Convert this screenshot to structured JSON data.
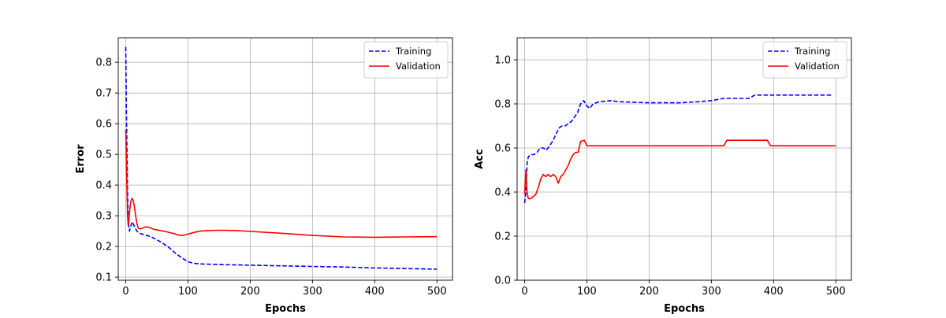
{
  "chart_data": [
    {
      "type": "line",
      "xlabel": "Epochs",
      "ylabel": "Error",
      "xlim": [
        -12,
        525
      ],
      "ylim": [
        0.09,
        0.88
      ],
      "xticks": [
        0,
        100,
        200,
        300,
        400,
        500
      ],
      "yticks": [
        0.1,
        0.2,
        0.3,
        0.4,
        0.5,
        0.6,
        0.7,
        0.8
      ],
      "grid": true,
      "legend": "top-right",
      "series": [
        {
          "name": "Training",
          "color": "#0000ff",
          "style": "dashed",
          "points": [
            [
              0,
              0.85
            ],
            [
              1,
              0.65
            ],
            [
              2,
              0.5
            ],
            [
              3,
              0.38
            ],
            [
              4,
              0.3
            ],
            [
              5,
              0.26
            ],
            [
              6,
              0.25
            ],
            [
              8,
              0.265
            ],
            [
              10,
              0.28
            ],
            [
              12,
              0.275
            ],
            [
              15,
              0.26
            ],
            [
              18,
              0.25
            ],
            [
              22,
              0.243
            ],
            [
              30,
              0.238
            ],
            [
              40,
              0.232
            ],
            [
              50,
              0.222
            ],
            [
              60,
              0.21
            ],
            [
              70,
              0.196
            ],
            [
              80,
              0.178
            ],
            [
              90,
              0.163
            ],
            [
              100,
              0.15
            ],
            [
              110,
              0.145
            ],
            [
              120,
              0.143
            ],
            [
              150,
              0.141
            ],
            [
              200,
              0.139
            ],
            [
              250,
              0.137
            ],
            [
              300,
              0.135
            ],
            [
              350,
              0.133
            ],
            [
              400,
              0.13
            ],
            [
              450,
              0.128
            ],
            [
              500,
              0.126
            ]
          ]
        },
        {
          "name": "Validation",
          "color": "#ff0000",
          "style": "solid",
          "points": [
            [
              0,
              0.58
            ],
            [
              1,
              0.49
            ],
            [
              2,
              0.38
            ],
            [
              3,
              0.3
            ],
            [
              4,
              0.27
            ],
            [
              5,
              0.28
            ],
            [
              6,
              0.31
            ],
            [
              8,
              0.345
            ],
            [
              10,
              0.357
            ],
            [
              12,
              0.35
            ],
            [
              14,
              0.33
            ],
            [
              16,
              0.3
            ],
            [
              18,
              0.275
            ],
            [
              20,
              0.26
            ],
            [
              23,
              0.257
            ],
            [
              27,
              0.26
            ],
            [
              32,
              0.264
            ],
            [
              38,
              0.262
            ],
            [
              45,
              0.256
            ],
            [
              55,
              0.252
            ],
            [
              65,
              0.248
            ],
            [
              75,
              0.243
            ],
            [
              85,
              0.237
            ],
            [
              92,
              0.236
            ],
            [
              100,
              0.24
            ],
            [
              110,
              0.246
            ],
            [
              120,
              0.25
            ],
            [
              135,
              0.252
            ],
            [
              150,
              0.253
            ],
            [
              175,
              0.252
            ],
            [
              200,
              0.249
            ],
            [
              250,
              0.243
            ],
            [
              300,
              0.236
            ],
            [
              350,
              0.231
            ],
            [
              400,
              0.23
            ],
            [
              450,
              0.231
            ],
            [
              500,
              0.232
            ]
          ]
        }
      ]
    },
    {
      "type": "line",
      "xlabel": "Epochs",
      "ylabel": "Acc",
      "xlim": [
        -12,
        525
      ],
      "ylim": [
        0.0,
        1.1
      ],
      "xticks": [
        0,
        100,
        200,
        300,
        400,
        500
      ],
      "yticks": [
        0.0,
        0.2,
        0.4,
        0.6,
        0.8,
        1.0
      ],
      "grid": true,
      "legend": "top-right",
      "series": [
        {
          "name": "Training",
          "color": "#0000ff",
          "style": "dashed",
          "points": [
            [
              0,
              0.35
            ],
            [
              2,
              0.4
            ],
            [
              4,
              0.53
            ],
            [
              6,
              0.56
            ],
            [
              10,
              0.57
            ],
            [
              15,
              0.57
            ],
            [
              20,
              0.58
            ],
            [
              25,
              0.6
            ],
            [
              30,
              0.6
            ],
            [
              35,
              0.59
            ],
            [
              40,
              0.61
            ],
            [
              45,
              0.63
            ],
            [
              50,
              0.66
            ],
            [
              55,
              0.69
            ],
            [
              60,
              0.7
            ],
            [
              65,
              0.7
            ],
            [
              70,
              0.71
            ],
            [
              75,
              0.72
            ],
            [
              80,
              0.74
            ],
            [
              85,
              0.76
            ],
            [
              90,
              0.8
            ],
            [
              95,
              0.815
            ],
            [
              100,
              0.79
            ],
            [
              105,
              0.78
            ],
            [
              110,
              0.8
            ],
            [
              120,
              0.81
            ],
            [
              140,
              0.815
            ],
            [
              150,
              0.81
            ],
            [
              200,
              0.805
            ],
            [
              250,
              0.805
            ],
            [
              280,
              0.81
            ],
            [
              300,
              0.815
            ],
            [
              320,
              0.825
            ],
            [
              360,
              0.825
            ],
            [
              370,
              0.84
            ],
            [
              400,
              0.84
            ],
            [
              450,
              0.84
            ],
            [
              495,
              0.84
            ]
          ]
        },
        {
          "name": "Validation",
          "color": "#ff0000",
          "style": "solid",
          "points": [
            [
              0,
              0.39
            ],
            [
              2,
              0.5
            ],
            [
              4,
              0.4
            ],
            [
              6,
              0.37
            ],
            [
              10,
              0.37
            ],
            [
              14,
              0.38
            ],
            [
              18,
              0.39
            ],
            [
              22,
              0.42
            ],
            [
              26,
              0.46
            ],
            [
              30,
              0.48
            ],
            [
              34,
              0.47
            ],
            [
              38,
              0.48
            ],
            [
              42,
              0.47
            ],
            [
              46,
              0.48
            ],
            [
              50,
              0.47
            ],
            [
              54,
              0.44
            ],
            [
              58,
              0.47
            ],
            [
              62,
              0.48
            ],
            [
              66,
              0.5
            ],
            [
              70,
              0.52
            ],
            [
              74,
              0.55
            ],
            [
              78,
              0.57
            ],
            [
              82,
              0.58
            ],
            [
              86,
              0.58
            ],
            [
              90,
              0.63
            ],
            [
              96,
              0.635
            ],
            [
              100,
              0.61
            ],
            [
              150,
              0.61
            ],
            [
              200,
              0.61
            ],
            [
              250,
              0.61
            ],
            [
              300,
              0.61
            ],
            [
              320,
              0.61
            ],
            [
              325,
              0.635
            ],
            [
              390,
              0.635
            ],
            [
              395,
              0.61
            ],
            [
              450,
              0.61
            ],
            [
              500,
              0.61
            ]
          ]
        }
      ]
    }
  ]
}
